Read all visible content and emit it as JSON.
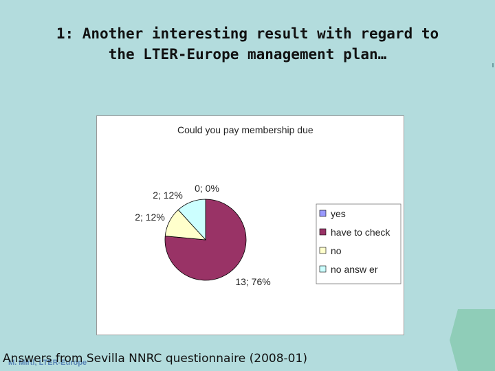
{
  "slide": {
    "title": "1: Another interesting result with regard to\nthe LTER-Europe management plan…",
    "footer_text": "Answers from Sevilla NNRC questionnaire (2008-01)",
    "author_text": "M. Mirtl, LTER-Europe"
  },
  "colors": {
    "background": "#b3dcdd",
    "deco": "#8fcdb8"
  },
  "chart_data": {
    "type": "pie",
    "title": "Could you pay membership due",
    "categories": [
      "yes",
      "have to check",
      "no",
      "no answ er"
    ],
    "values": [
      0,
      13,
      2,
      2
    ],
    "percents": [
      0,
      76,
      12,
      12
    ],
    "data_labels": [
      "0; 0%",
      "13; 76%",
      "2; 12%",
      "2; 12%"
    ],
    "colors": [
      "#9999ff",
      "#993366",
      "#ffffcc",
      "#ccffff"
    ],
    "legend_position": "right",
    "start_angle": "top, clockwise"
  }
}
